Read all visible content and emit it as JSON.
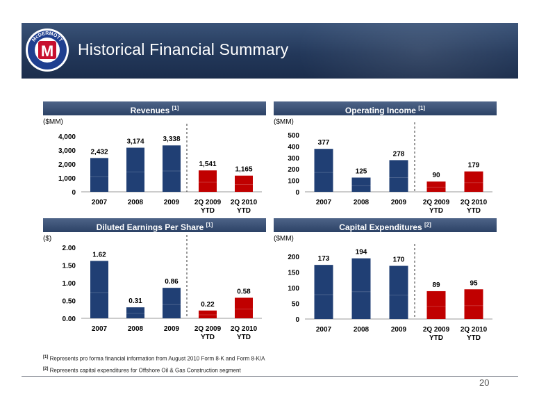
{
  "slide": {
    "title": "Historical Financial Summary",
    "page_number": "20",
    "logo_text": "McDERMOTT"
  },
  "footnotes": [
    {
      "marker": "[1]",
      "text": "Represents pro forma financial information from August 2010 Form 8-K and Form 8-K/A"
    },
    {
      "marker": "[2]",
      "text": "Represents capital expenditures for Offshore Oil & Gas Construction segment"
    }
  ],
  "colors": {
    "blue": "#203f74",
    "red": "#c00000",
    "header": "#23385a"
  },
  "chart_data": [
    {
      "type": "bar",
      "title": "Revenues",
      "title_note": "[1]",
      "unit_label": "($MM)",
      "categories": [
        [
          "2007"
        ],
        [
          "2008"
        ],
        [
          "2009"
        ],
        [
          "2Q 2009",
          "YTD"
        ],
        [
          "2Q 2010",
          "YTD"
        ]
      ],
      "values": [
        2432,
        3174,
        3338,
        1541,
        1165
      ],
      "labels": [
        "2,432",
        "3,174",
        "3,338",
        "1,541",
        "1,165"
      ],
      "ylim": [
        0,
        4000
      ],
      "yticks": [
        0,
        1000,
        2000,
        3000,
        4000
      ],
      "ytick_labels": [
        "0",
        "1,000",
        "2,000",
        "3,000",
        "4,000"
      ],
      "bar_colors": [
        "#203f74",
        "#203f74",
        "#203f74",
        "#c00000",
        "#c00000"
      ],
      "divider_after": 3
    },
    {
      "type": "bar",
      "title": "Operating Income",
      "title_note": "[1]",
      "unit_label": "($MM)",
      "categories": [
        [
          "2007"
        ],
        [
          "2008"
        ],
        [
          "2009"
        ],
        [
          "2Q 2009",
          "YTD"
        ],
        [
          "2Q 2010",
          "YTD"
        ]
      ],
      "values": [
        377,
        125,
        278,
        90,
        179
      ],
      "labels": [
        "377",
        "125",
        "278",
        "90",
        "179"
      ],
      "ylim": [
        0,
        500
      ],
      "yticks": [
        0,
        100,
        200,
        300,
        400,
        500
      ],
      "ytick_labels": [
        "0",
        "100",
        "200",
        "300",
        "400",
        "500"
      ],
      "bar_colors": [
        "#203f74",
        "#203f74",
        "#203f74",
        "#c00000",
        "#c00000"
      ],
      "divider_after": 3
    },
    {
      "type": "bar",
      "title": "Diluted Earnings Per Share",
      "title_note": "[1]",
      "unit_label": "($)",
      "categories": [
        [
          "2007"
        ],
        [
          "2008"
        ],
        [
          "2009"
        ],
        [
          "2Q 2009",
          "YTD"
        ],
        [
          "2Q 2010",
          "YTD"
        ]
      ],
      "values": [
        1.62,
        0.31,
        0.86,
        0.22,
        0.58
      ],
      "labels": [
        "1.62",
        "0.31",
        "0.86",
        "0.22",
        "0.58"
      ],
      "ylim": [
        0,
        2
      ],
      "yticks": [
        0,
        0.5,
        1,
        1.5,
        2
      ],
      "ytick_labels": [
        "0.00",
        "0.50",
        "1.00",
        "1.50",
        "2.00"
      ],
      "bar_colors": [
        "#203f74",
        "#203f74",
        "#203f74",
        "#c00000",
        "#c00000"
      ],
      "divider_after": 3
    },
    {
      "type": "bar",
      "title": "Capital Expenditures",
      "title_note": "[2]",
      "unit_label": "($MM)",
      "categories": [
        [
          "2007"
        ],
        [
          "2008"
        ],
        [
          "2009"
        ],
        [
          "2Q 2009",
          "YTD"
        ],
        [
          "2Q 2010",
          "YTD"
        ]
      ],
      "values": [
        173,
        194,
        170,
        89,
        95
      ],
      "labels": [
        "173",
        "194",
        "170",
        "89",
        "95"
      ],
      "ylim": [
        0,
        200
      ],
      "yticks": [
        0,
        50,
        100,
        150,
        200
      ],
      "ytick_labels": [
        "0",
        "50",
        "100",
        "150",
        "200"
      ],
      "bar_colors": [
        "#203f74",
        "#203f74",
        "#203f74",
        "#c00000",
        "#c00000"
      ],
      "divider_after": 3
    }
  ]
}
